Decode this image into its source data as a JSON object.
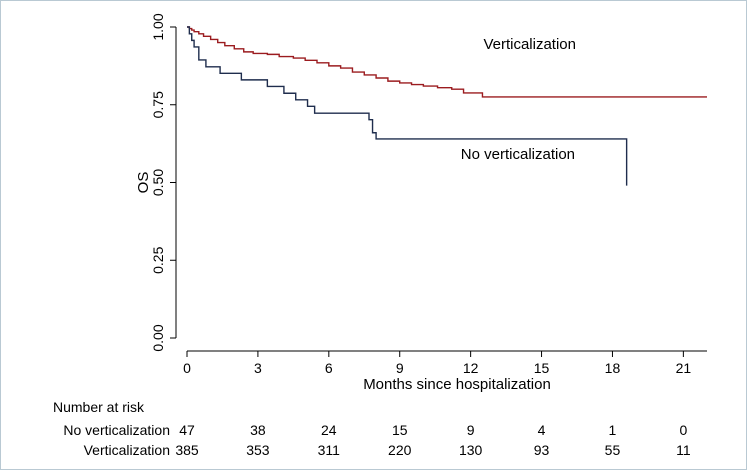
{
  "chart_data": {
    "type": "line",
    "xlabel": "Months since hospitalization",
    "ylabel": "OS",
    "xlim": [
      0,
      22
    ],
    "ylim": [
      0,
      1
    ],
    "x_ticks": [
      0,
      3,
      6,
      9,
      12,
      15,
      18,
      21
    ],
    "y_ticks": [
      "0.00",
      "0.25",
      "0.50",
      "0.75",
      "1.00"
    ],
    "grid": false,
    "colors": {
      "verticalization": "#9b1b1f",
      "no_verticalization": "#1f2d4d",
      "frame": "#b9c9d3"
    },
    "series": [
      {
        "name": "Verticalization",
        "step": true,
        "x": [
          0,
          0.1,
          0.2,
          0.3,
          0.5,
          0.7,
          1.0,
          1.3,
          1.6,
          2.0,
          2.4,
          2.8,
          3.4,
          3.9,
          4.5,
          5.0,
          5.5,
          6.0,
          6.5,
          7.0,
          7.5,
          8.0,
          8.5,
          9.0,
          9.5,
          10.0,
          10.6,
          11.2,
          11.7,
          12.5,
          15.0,
          18.0,
          22.0
        ],
        "values": [
          1.0,
          0.995,
          0.99,
          0.985,
          0.978,
          0.97,
          0.96,
          0.95,
          0.94,
          0.93,
          0.92,
          0.915,
          0.912,
          0.905,
          0.9,
          0.893,
          0.885,
          0.875,
          0.868,
          0.855,
          0.846,
          0.836,
          0.826,
          0.82,
          0.815,
          0.81,
          0.805,
          0.8,
          0.788,
          0.775,
          0.775,
          0.775,
          0.775
        ]
      },
      {
        "name": "No verticalization",
        "step": true,
        "x": [
          0,
          0.1,
          0.2,
          0.3,
          0.5,
          0.8,
          1.4,
          2.3,
          3.4,
          4.1,
          4.6,
          5.1,
          5.4,
          7.7,
          7.85,
          8.0,
          12.0,
          17.2,
          18.6
        ],
        "values": [
          1.0,
          0.978,
          0.957,
          0.936,
          0.894,
          0.872,
          0.851,
          0.83,
          0.809,
          0.787,
          0.766,
          0.745,
          0.723,
          0.702,
          0.66,
          0.64,
          0.64,
          0.64,
          0.49
        ]
      }
    ],
    "annotations": [
      {
        "text": "Verticalization",
        "x": 14.5,
        "y": 0.93
      },
      {
        "text": "No verticalization",
        "x": 14.0,
        "y": 0.575
      }
    ]
  },
  "risk_table": {
    "heading": "Number at risk",
    "rows": [
      {
        "label": "No verticalization",
        "values": [
          "47",
          "38",
          "24",
          "15",
          "9",
          "4",
          "1",
          "0"
        ]
      },
      {
        "label": "Verticalization",
        "values": [
          "385",
          "353",
          "311",
          "220",
          "130",
          "93",
          "55",
          "11"
        ]
      }
    ]
  }
}
